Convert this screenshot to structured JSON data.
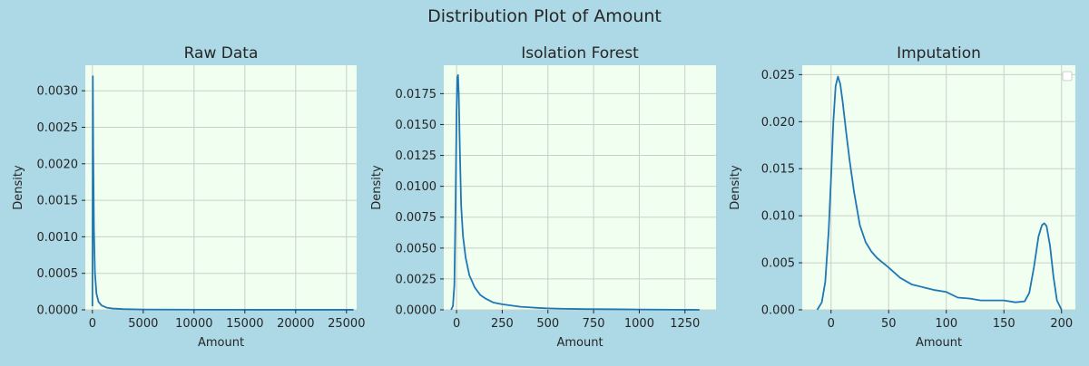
{
  "figure": {
    "title": "Distribution Plot of Amount",
    "background": "#add8e6",
    "axes_facecolor": "#f0fff0",
    "grid_color": "#c8d0c8",
    "line_color": "#1f77b4"
  },
  "chart_data": [
    {
      "type": "line",
      "title": "Raw Data",
      "xlabel": "Amount",
      "ylabel": "Density",
      "xlim": [
        -700,
        26000
      ],
      "ylim": [
        0,
        0.00335
      ],
      "xticks": [
        0,
        5000,
        10000,
        15000,
        20000,
        25000
      ],
      "yticks": [
        0.0,
        0.0005,
        0.001,
        0.0015,
        0.002,
        0.0025,
        0.003
      ],
      "ytick_labels": [
        "0.0000",
        "0.0005",
        "0.0010",
        "0.0015",
        "0.0020",
        "0.0025",
        "0.0030"
      ],
      "grid": true,
      "legend": false,
      "series": [
        {
          "x": [
            0,
            40,
            80,
            150,
            250,
            400,
            600,
            900,
            1400,
            2000,
            3000,
            5000,
            8000,
            12000,
            16000,
            20000,
            25000,
            25700
          ],
          "y": [
            5e-05,
            0.0032,
            0.0022,
            0.0011,
            0.0005,
            0.00022,
            0.00011,
            6e-05,
            3e-05,
            1.8e-05,
            1e-05,
            5e-06,
            3e-06,
            2e-06,
            1e-06,
            1e-06,
            1e-06,
            1e-06
          ]
        }
      ]
    },
    {
      "type": "line",
      "title": "Isolation Forest",
      "xlabel": "Amount",
      "ylabel": "Density",
      "xlim": [
        -70,
        1420
      ],
      "ylim": [
        0,
        0.0198
      ],
      "xticks": [
        0,
        250,
        500,
        750,
        1000,
        1250
      ],
      "yticks": [
        0.0,
        0.0025,
        0.005,
        0.0075,
        0.01,
        0.0125,
        0.015,
        0.0175
      ],
      "ytick_labels": [
        "0.0000",
        "0.0025",
        "0.0050",
        "0.0075",
        "0.0100",
        "0.0125",
        "0.0150",
        "0.0175"
      ],
      "grid": true,
      "legend": false,
      "series": [
        {
          "x": [
            -30,
            -20,
            -12,
            -5,
            0,
            4,
            8,
            12,
            18,
            25,
            35,
            50,
            70,
            100,
            130,
            160,
            200,
            250,
            300,
            350,
            400,
            450,
            500,
            550,
            600,
            700,
            800,
            900,
            1000,
            1100,
            1200,
            1330
          ],
          "y": [
            0.0,
            0.0003,
            0.002,
            0.009,
            0.016,
            0.0188,
            0.019,
            0.0175,
            0.013,
            0.0085,
            0.006,
            0.0042,
            0.0028,
            0.0018,
            0.0012,
            0.0009,
            0.0006,
            0.00045,
            0.00035,
            0.00025,
            0.0002,
            0.00015,
            0.00012,
            0.0001,
            8e-05,
            6e-05,
            5e-05,
            4e-05,
            3e-05,
            2e-05,
            1e-05,
            0.0
          ]
        }
      ]
    },
    {
      "type": "line",
      "title": "Imputation",
      "xlabel": "Amount",
      "ylabel": "Density",
      "xlim": [
        -25,
        212
      ],
      "ylim": [
        0,
        0.026
      ],
      "xticks": [
        0,
        50,
        100,
        150,
        200
      ],
      "yticks": [
        0.0,
        0.005,
        0.01,
        0.015,
        0.02,
        0.025
      ],
      "ytick_labels": [
        "0.000",
        "0.005",
        "0.010",
        "0.015",
        "0.020",
        "0.025"
      ],
      "grid": true,
      "legend": true,
      "legend_loc": "top-right",
      "series": [
        {
          "x": [
            -12,
            -8,
            -5,
            -2,
            0,
            2,
            4,
            6,
            8,
            10,
            13,
            16,
            20,
            25,
            30,
            35,
            40,
            50,
            60,
            70,
            80,
            90,
            100,
            110,
            120,
            130,
            140,
            150,
            160,
            168,
            172,
            176,
            180,
            183,
            185,
            187,
            190,
            193,
            196,
            200
          ],
          "y": [
            0.0,
            0.0008,
            0.003,
            0.0085,
            0.014,
            0.02,
            0.0238,
            0.0248,
            0.024,
            0.0222,
            0.019,
            0.016,
            0.0125,
            0.009,
            0.0072,
            0.0062,
            0.0055,
            0.0045,
            0.0034,
            0.0027,
            0.0024,
            0.0021,
            0.0019,
            0.0013,
            0.0012,
            0.001,
            0.001,
            0.001,
            0.0008,
            0.0009,
            0.0018,
            0.0045,
            0.0078,
            0.009,
            0.0092,
            0.0089,
            0.0068,
            0.0035,
            0.001,
            0.0
          ]
        }
      ]
    }
  ]
}
